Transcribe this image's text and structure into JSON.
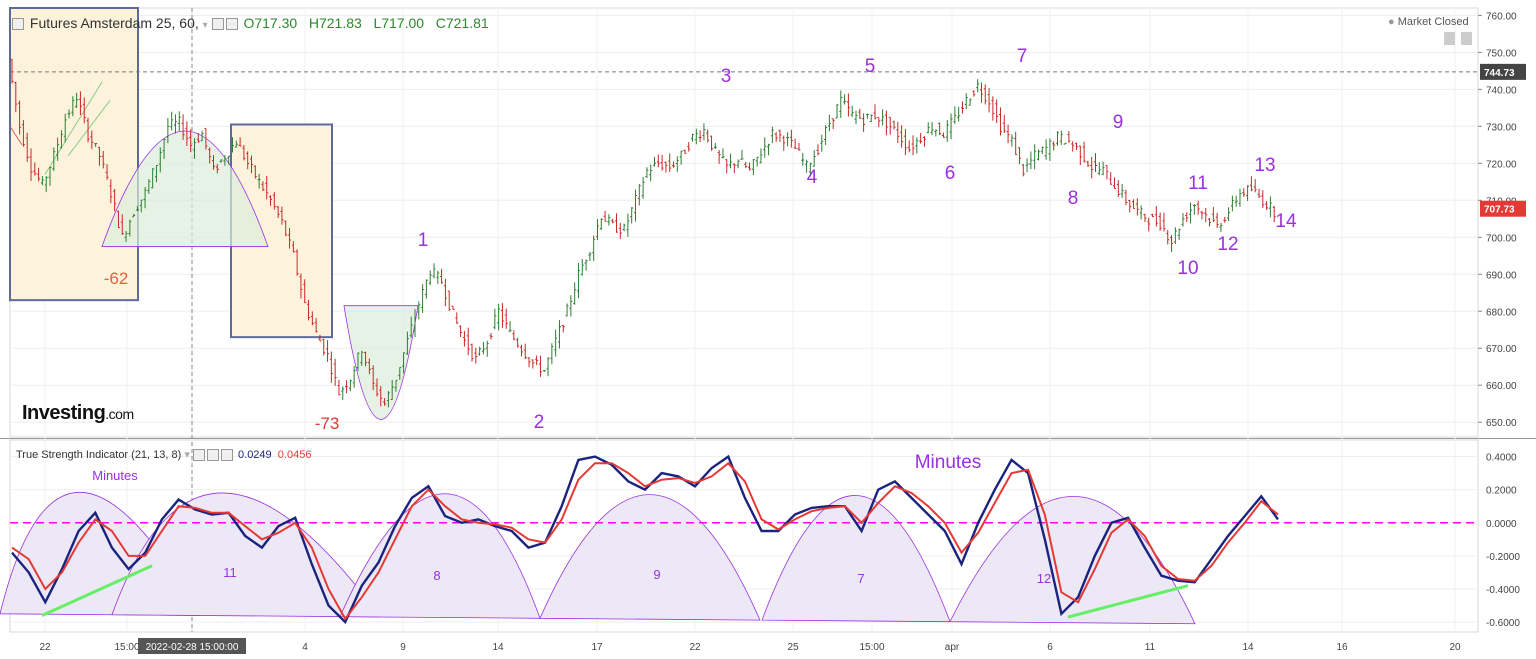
{
  "header": {
    "instrument": "Futures Amsterdam 25, 60,",
    "open": "O717.30",
    "high": "H721.83",
    "low": "L717.00",
    "close": "C721.81"
  },
  "market_status": "Market Closed",
  "logo": {
    "main": "Investing",
    "suffix": ".com"
  },
  "indicator": {
    "title": "True Strength Indicator (21, 13, 8)",
    "value1": "0.0249",
    "value2": "0.0456",
    "color1": "#1a237e",
    "color2": "#e53935"
  },
  "price_labels": {
    "dashed_level": "744.73",
    "last_price": "707.73",
    "last_price_color": "#e53935"
  },
  "crosshair_label": "2022-02-28 15:00:00",
  "colors": {
    "up": "#2e7d32",
    "down": "#c62828",
    "wave_label": "#9b30e0",
    "zero_line": "#ff00ff",
    "trend_line": "#66ee66",
    "arc": "#9b30e0"
  },
  "chart_data": [
    {
      "type": "line",
      "subtype": "ohlc-bars",
      "title": "Futures Amsterdam 25, 60,",
      "x_tick_labels": [
        "22",
        "15:00",
        "2022-02-28 15:00:00",
        "4",
        "9",
        "14",
        "17",
        "22",
        "25",
        "15:00",
        "apr",
        "6",
        "11",
        "14",
        "16",
        "20"
      ],
      "y_ticks": [
        650,
        660,
        670,
        680,
        690,
        700,
        710,
        720,
        730,
        740,
        750,
        760
      ],
      "ylim": [
        646,
        762
      ],
      "series": [
        {
          "values": [
            748,
            730,
            719,
            714,
            722,
            732,
            738,
            728,
            722,
            712,
            700,
            707,
            712,
            720,
            730,
            731,
            725,
            728,
            718,
            722,
            726,
            720,
            715,
            710,
            704,
            695,
            682,
            674,
            668,
            658,
            662,
            670,
            660,
            655,
            662,
            672,
            682,
            691,
            688,
            679,
            672,
            667,
            672,
            680,
            674,
            670,
            666,
            664,
            672,
            680,
            690,
            697,
            706,
            703,
            702,
            710,
            718,
            720,
            719,
            722,
            727,
            729,
            723,
            719,
            721,
            718,
            723,
            728,
            727,
            724,
            719,
            724,
            731,
            737,
            733,
            732,
            733,
            731,
            728,
            724,
            727,
            730,
            728,
            732,
            737,
            741,
            737,
            730,
            726,
            718,
            722,
            724,
            727,
            726,
            723,
            719,
            718,
            714,
            710,
            707,
            705,
            704,
            699,
            705,
            709,
            706,
            703,
            707,
            712,
            713,
            710,
            707
          ]
        }
      ],
      "wave_labels": [
        {
          "label": "-62",
          "color": "#e8603a"
        },
        {
          "label": "-73",
          "color": "#e53935"
        },
        {
          "label": "1"
        },
        {
          "label": "2"
        },
        {
          "label": "3"
        },
        {
          "label": "4"
        },
        {
          "label": "5"
        },
        {
          "label": "6"
        },
        {
          "label": "7"
        },
        {
          "label": "8"
        },
        {
          "label": "9"
        },
        {
          "label": "10"
        },
        {
          "label": "11"
        },
        {
          "label": "12"
        },
        {
          "label": "13"
        },
        {
          "label": "14"
        }
      ]
    },
    {
      "type": "line",
      "title": "True Strength Indicator (21, 13, 8)",
      "y_ticks": [
        -0.6,
        -0.4,
        -0.2,
        0.0,
        0.2,
        0.4
      ],
      "ylim": [
        -0.66,
        0.5
      ],
      "reference_line": 0.0,
      "annotations": [
        "Minutes",
        "Minutes",
        "11",
        "8",
        "9",
        "7",
        "12"
      ],
      "series": [
        {
          "values": [
            -0.18,
            -0.3,
            -0.48,
            -0.28,
            -0.05,
            0.06,
            -0.15,
            -0.28,
            -0.18,
            0.02,
            0.14,
            0.08,
            0.05,
            0.06,
            -0.08,
            -0.15,
            -0.02,
            0.03,
            -0.25,
            -0.5,
            -0.6,
            -0.38,
            -0.24,
            -0.02,
            0.15,
            0.22,
            0.04,
            0.0,
            0.02,
            -0.02,
            -0.05,
            -0.15,
            -0.12,
            0.1,
            0.38,
            0.4,
            0.35,
            0.25,
            0.2,
            0.3,
            0.28,
            0.22,
            0.33,
            0.4,
            0.15,
            -0.05,
            -0.05,
            0.05,
            0.09,
            0.1,
            0.1,
            -0.05,
            0.2,
            0.25,
            0.15,
            0.05,
            -0.05,
            -0.25,
            0.0,
            0.2,
            0.38,
            0.3,
            -0.1,
            -0.55,
            -0.45,
            -0.2,
            0.0,
            0.03,
            -0.15,
            -0.32,
            -0.35,
            -0.36,
            -0.22,
            -0.08,
            0.04,
            0.16,
            0.02
          ]
        },
        {
          "values": [
            -0.15,
            -0.22,
            -0.4,
            -0.3,
            -0.12,
            0.02,
            -0.05,
            -0.2,
            -0.2,
            -0.05,
            0.1,
            0.09,
            0.06,
            0.06,
            -0.02,
            -0.1,
            -0.06,
            0.0,
            -0.15,
            -0.4,
            -0.58,
            -0.45,
            -0.3,
            -0.1,
            0.1,
            0.2,
            0.1,
            0.02,
            0.0,
            -0.01,
            -0.03,
            -0.1,
            -0.12,
            0.02,
            0.26,
            0.36,
            0.36,
            0.3,
            0.22,
            0.26,
            0.27,
            0.24,
            0.28,
            0.36,
            0.25,
            0.02,
            -0.04,
            0.02,
            0.07,
            0.09,
            0.1,
            0.0,
            0.12,
            0.22,
            0.18,
            0.1,
            0.0,
            -0.18,
            -0.06,
            0.12,
            0.3,
            0.32,
            0.05,
            -0.42,
            -0.48,
            -0.28,
            -0.06,
            0.02,
            -0.08,
            -0.26,
            -0.34,
            -0.35,
            -0.26,
            -0.12,
            0.0,
            0.13,
            0.05
          ]
        }
      ]
    }
  ]
}
